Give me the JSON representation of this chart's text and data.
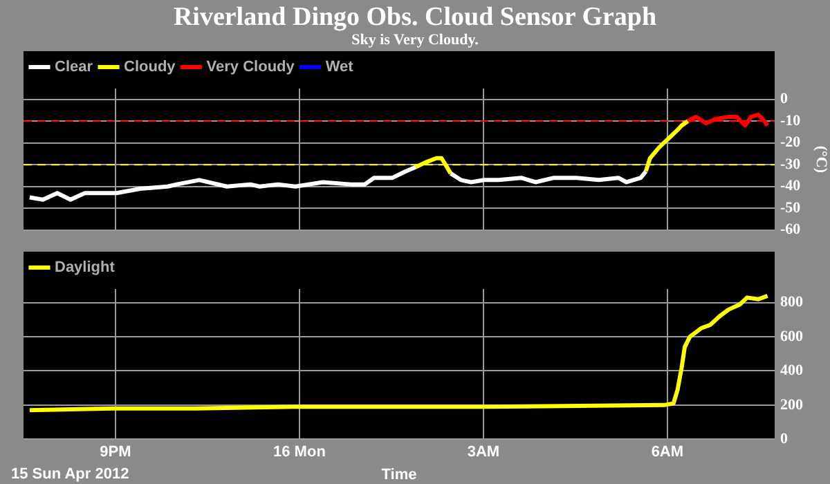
{
  "chart_data": [
    {
      "type": "line",
      "title": "Riverland Dingo Obs. Cloud Sensor Graph",
      "subtitle": "Sky is Very Cloudy.",
      "ylabel": "(°C)",
      "legend": "top left",
      "grid": true,
      "marker": "none",
      "line_style": "solid",
      "tick_labels": "y",
      "xlim": [
        "2012-04-15T19:30",
        "2012-04-16T07:45"
      ],
      "xticks": [
        {
          "value": "2012-04-15T21:00",
          "label": null
        },
        {
          "value": "2012-04-16T00:00",
          "label": null
        },
        {
          "value": "2012-04-16T03:00",
          "label": null
        },
        {
          "value": "2012-04-16T06:00",
          "label": null
        }
      ],
      "ylim": [
        -60,
        5
      ],
      "yticks": [
        -60,
        -50,
        -40,
        -30,
        -20,
        -10,
        0
      ],
      "ref_lines": [
        {
          "axis": "y",
          "value": -10,
          "color": "#ff0000",
          "line_style": "dashed"
        },
        {
          "axis": "y",
          "value": -30,
          "color": "#ffff00",
          "line_style": "dashed"
        }
      ],
      "series": [
        {
          "name": "Clear",
          "color": "#ffffff",
          "x": [
            "2012-04-15T19:36",
            "2012-04-15T19:49",
            "2012-04-15T20:03",
            "2012-04-15T20:16",
            "2012-04-15T20:30",
            "2012-04-15T21:01",
            "2012-04-15T21:24",
            "2012-04-15T21:51",
            "2012-04-15T22:00",
            "2012-04-15T22:22",
            "2012-04-15T22:49",
            "2012-04-15T23:12",
            "2012-04-15T23:21",
            "2012-04-15T23:39",
            "2012-04-15T23:56",
            "2012-04-16T00:23",
            "2012-04-16T00:50",
            "2012-04-16T01:04",
            "2012-04-16T01:13",
            "2012-04-16T01:31",
            "2012-04-16T01:44",
            "2012-04-16T01:54",
            "2012-04-16T02:12",
            "2012-04-16T02:28",
            "2012-04-16T02:38",
            "2012-04-16T02:48",
            "2012-04-16T03:01",
            "2012-04-16T03:15",
            "2012-04-16T03:37",
            "2012-04-16T03:51",
            "2012-04-16T04:09",
            "2012-04-16T04:31",
            "2012-04-16T04:53",
            "2012-04-16T05:12",
            "2012-04-16T05:20",
            "2012-04-16T05:34",
            "2012-04-16T05:39"
          ],
          "values": [
            -45,
            -46,
            -43,
            -46,
            -43,
            -43,
            -41,
            -40,
            -39,
            -37,
            -40,
            -39,
            -40,
            -39,
            -40,
            -38,
            -39,
            -39,
            -36,
            -36,
            -33,
            -31,
            null,
            -34,
            -37,
            -38,
            -37,
            -37,
            -36,
            -38,
            -36,
            -36,
            -37,
            -36,
            -38,
            -36,
            -33
          ]
        },
        {
          "name": "Cloudy",
          "color": "#ffff00",
          "x": [
            "2012-04-16T01:54",
            "2012-04-16T02:03",
            "2012-04-16T02:14",
            "2012-04-16T02:19",
            "2012-04-16T02:23",
            "2012-04-16T02:28",
            "2012-04-16T03:30",
            "2012-04-16T05:39",
            "2012-04-16T05:43",
            "2012-04-16T05:52",
            "2012-04-16T06:01",
            "2012-04-16T06:10",
            "2012-04-16T06:14",
            "2012-04-16T06:20"
          ],
          "values": [
            -31,
            -29,
            -27,
            -27,
            -30,
            -34,
            null,
            -33,
            -27,
            -22,
            -18,
            -14,
            -12,
            -10
          ]
        },
        {
          "name": "Very Cloudy",
          "color": "#ff0000",
          "x": [
            "2012-04-16T06:14",
            "2012-04-16T06:20",
            "2012-04-16T06:28",
            "2012-04-16T06:38",
            "2012-04-16T06:47",
            "2012-04-16T07:00",
            "2012-04-16T07:08",
            "2012-04-16T07:16",
            "2012-04-16T07:22",
            "2012-04-16T07:29",
            "2012-04-16T07:35",
            "2012-04-16T07:38"
          ],
          "values": [
            -12,
            -10,
            -8,
            -11,
            -9,
            -8,
            -8,
            -12,
            -8,
            -7,
            -10,
            -12
          ]
        },
        {
          "name": "Wet",
          "color": "#0000ff"
        }
      ]
    },
    {
      "type": "line",
      "xlabel": "Time",
      "legend": "top left",
      "grid": true,
      "marker": "none",
      "line_style": "solid",
      "annotations": [
        "15 Sun Apr 2012"
      ],
      "xlim": [
        "2012-04-15T19:30",
        "2012-04-16T07:45"
      ],
      "xticks": [
        {
          "value": "2012-04-15T21:00",
          "label": "9PM"
        },
        {
          "value": "2012-04-16T00:00",
          "label": "16 Mon"
        },
        {
          "value": "2012-04-16T03:00",
          "label": "3AM"
        },
        {
          "value": "2012-04-16T06:00",
          "label": "6AM"
        }
      ],
      "ylim": [
        0,
        880
      ],
      "yticks": [
        0,
        200,
        400,
        600,
        800
      ],
      "series": [
        {
          "name": "Daylight",
          "color": "#ffff00",
          "x": [
            "2012-04-15T19:36",
            "2012-04-15T20:57",
            "2012-04-15T22:18",
            "2012-04-15T23:56",
            "2012-04-16T01:54",
            "2012-04-16T03:01",
            "2012-04-16T05:57",
            "2012-04-16T06:06",
            "2012-04-16T06:10",
            "2012-04-16T06:14",
            "2012-04-16T06:17",
            "2012-04-16T06:22",
            "2012-04-16T06:33",
            "2012-04-16T06:42",
            "2012-04-16T06:51",
            "2012-04-16T07:00",
            "2012-04-16T07:11",
            "2012-04-16T07:18",
            "2012-04-16T07:29",
            "2012-04-16T07:38"
          ],
          "values": [
            170,
            180,
            180,
            190,
            190,
            190,
            200,
            210,
            290,
            420,
            540,
            600,
            650,
            670,
            720,
            760,
            790,
            830,
            820,
            840
          ]
        }
      ]
    }
  ]
}
